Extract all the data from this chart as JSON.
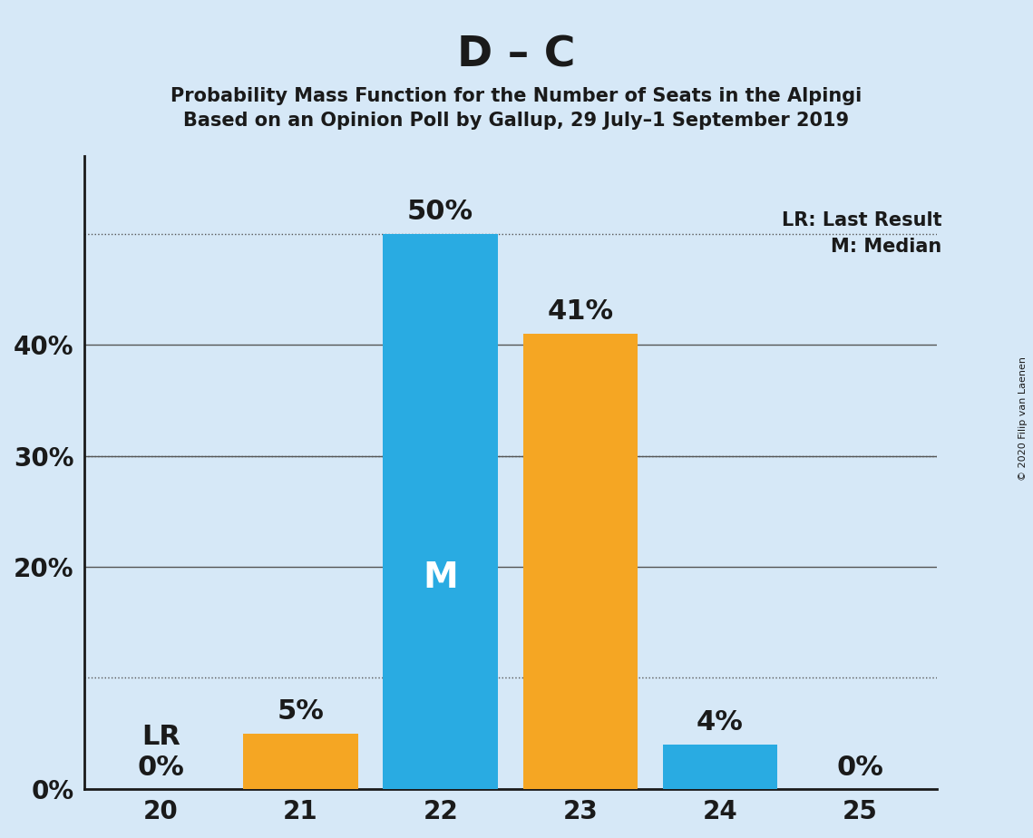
{
  "title": "D – C",
  "subtitle1": "Probability Mass Function for the Number of Seats in the Alpingi",
  "subtitle2": "Based on an Opinion Poll by Gallup, 29 July–1 September 2019",
  "copyright": "© 2020 Filip van Laenen",
  "categories": [
    20,
    21,
    22,
    23,
    24,
    25
  ],
  "values": [
    0,
    5,
    50,
    41,
    4,
    0
  ],
  "bar_colors": [
    "#29ABE2",
    "#F5A623",
    "#29ABE2",
    "#F5A623",
    "#29ABE2",
    "#29ABE2"
  ],
  "median_bar": 22,
  "lr_bar": 20,
  "legend_lr": "LR: Last Result",
  "legend_m": "M: Median",
  "median_label": "M",
  "background_color": "#D6E8F7",
  "text_color": "#1A1A1A",
  "bar_label_color_light": "#FFFFFF",
  "title_fontsize": 34,
  "subtitle_fontsize": 15,
  "tick_fontsize": 20,
  "bar_label_fontsize": 22,
  "legend_fontsize": 15,
  "median_fontsize": 28,
  "copyright_fontsize": 8,
  "yticks": [
    0,
    10,
    20,
    30,
    40,
    50
  ],
  "ylim": [
    0,
    57
  ],
  "xlim": [
    19.45,
    25.55
  ],
  "bar_width": 0.82,
  "solid_hlines": [
    20,
    30,
    40
  ],
  "dotted_hlines": [
    10,
    30,
    50
  ],
  "grid_color": "#555555",
  "axis_line_color": "#1A1A1A",
  "axis_linewidth": 2.0,
  "hline_linewidth": 1.0
}
